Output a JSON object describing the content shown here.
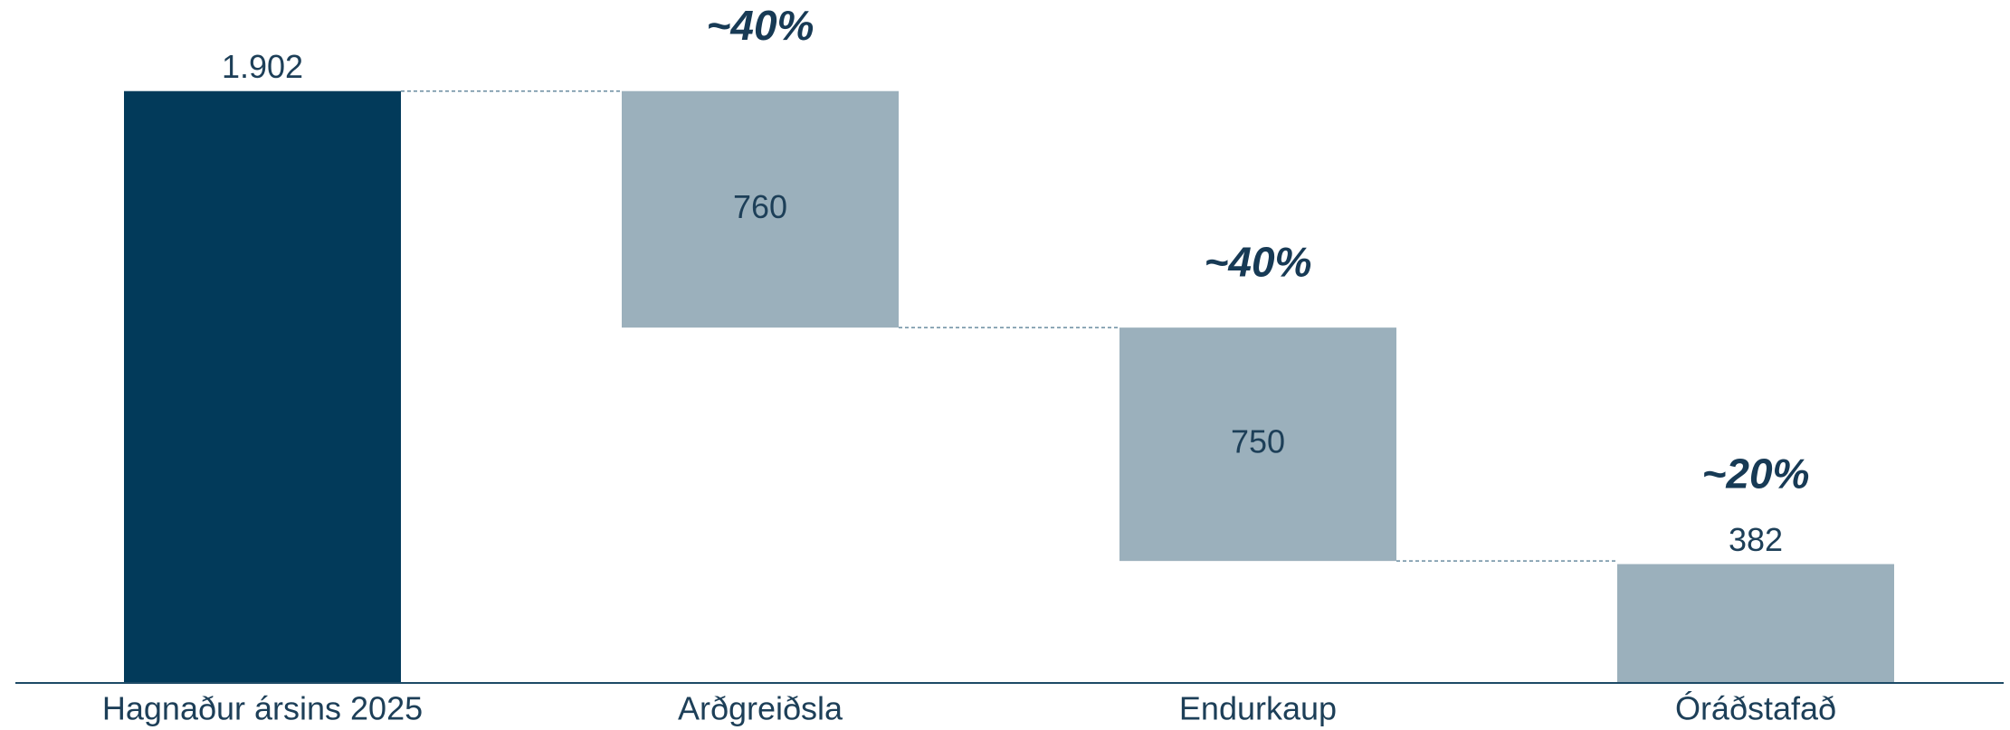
{
  "chart_data": {
    "type": "waterfall",
    "categories": [
      "Hagnaður ársins 2025",
      "Arðgreiðsla",
      "Endurkaup",
      "Óráðstafað"
    ],
    "values": [
      1902,
      760,
      750,
      382
    ],
    "value_labels": [
      "1.902",
      "760",
      "750",
      "382"
    ],
    "kinds": [
      "total",
      "decrease",
      "decrease",
      "total"
    ],
    "colors": [
      "#023a5a",
      "#9bb0bc",
      "#9bb0bc",
      "#9bb0bc"
    ],
    "annotations": [
      null,
      "~40%",
      "~40%",
      "~20%"
    ],
    "ylim": [
      0,
      2000
    ]
  }
}
